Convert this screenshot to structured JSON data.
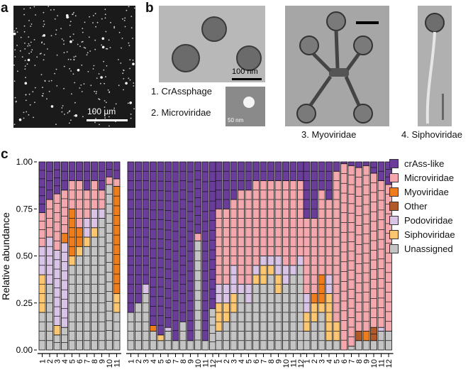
{
  "panels": {
    "a": {
      "letter": "a",
      "scale_label": "100 µm"
    },
    "b": {
      "letter": "b",
      "scale_label_main": "100 nm",
      "scale_label_small": "50 nm",
      "captions": [
        "1. CrAssphage",
        "2. Microviridae",
        "3. Myoviridae",
        "4. Siphoviridae"
      ]
    },
    "c": {
      "letter": "c"
    }
  },
  "colors": {
    "crass": "#6a3d9a",
    "micro": "#f4a8ad",
    "myo": "#f07d1b",
    "other": "#b15928",
    "podo": "#d9c3e6",
    "sipho": "#fdc772",
    "unassigned": "#c4c4c4"
  },
  "chart_data": {
    "type": "bar",
    "stacked": true,
    "ylabel": "Relative abundance",
    "yticks": [
      "0.00",
      "0.25",
      "0.50",
      "0.75",
      "1.00"
    ],
    "ylim": [
      0,
      1
    ],
    "legend": [
      "crAss-like",
      "Microviridae",
      "Myoviridae",
      "Other",
      "Podoviridae",
      "Siphoviridae",
      "Unassigned"
    ],
    "legend_keys": [
      "crass",
      "micro",
      "myo",
      "other",
      "podo",
      "sipho",
      "unassigned"
    ],
    "legend_position": "right",
    "groups": [
      {
        "categories": [
          "1",
          "2",
          "3",
          "4",
          "5",
          "6",
          "7",
          "8",
          "9",
          "10",
          "11"
        ],
        "stacks": [
          {
            "unassigned": 0.2,
            "sipho": 0.2,
            "podo": 0.15,
            "micro": 0.18,
            "crass": 0.27
          },
          {
            "unassigned": 0.35,
            "podo": 0.25,
            "micro": 0.2,
            "crass": 0.2
          },
          {
            "unassigned": 0.08,
            "sipho": 0.05,
            "podo": 0.4,
            "micro": 0.3,
            "crass": 0.17
          },
          {
            "unassigned": 0.12,
            "myo": 0.05,
            "podo": 0.45,
            "micro": 0.23,
            "crass": 0.15
          },
          {
            "unassigned": 0.45,
            "sipho": 0.05,
            "myo": 0.25,
            "micro": 0.15,
            "crass": 0.1
          },
          {
            "unassigned": 0.5,
            "sipho": 0.05,
            "myo": 0.1,
            "micro": 0.25,
            "crass": 0.1
          },
          {
            "unassigned": 0.55,
            "sipho": 0.05,
            "podo": 0.1,
            "micro": 0.15,
            "crass": 0.15
          },
          {
            "unassigned": 0.6,
            "sipho": 0.05,
            "podo": 0.1,
            "micro": 0.15,
            "crass": 0.1
          },
          {
            "unassigned": 0.7,
            "podo": 0.05,
            "micro": 0.1,
            "crass": 0.15
          },
          {
            "unassigned": 0.88,
            "micro": 0.04,
            "crass": 0.08
          },
          {
            "unassigned": 0.2,
            "sipho": 0.1,
            "myo": 0.57,
            "micro": 0.04,
            "crass": 0.09
          }
        ]
      },
      {
        "categories": [
          "1",
          "2",
          "3",
          "4",
          "5",
          "6",
          "7",
          "8",
          "9",
          "10",
          "11",
          "12"
        ],
        "stacks": [
          {
            "unassigned": 0.2,
            "crass": 0.8
          },
          {
            "unassigned": 0.25,
            "crass": 0.75
          },
          {
            "unassigned": 0.3,
            "podo": 0.05,
            "crass": 0.65
          },
          {
            "unassigned": 0.1,
            "myo": 0.03,
            "crass": 0.87
          },
          {
            "unassigned": 0.05,
            "sipho": 0.03,
            "crass": 0.92
          },
          {
            "unassigned": 0.1,
            "podo": 0.02,
            "crass": 0.88
          },
          {
            "unassigned": 0.05,
            "crass": 0.95
          },
          {
            "unassigned": 0.15,
            "crass": 0.85
          },
          {
            "unassigned": 0.05,
            "crass": 0.95
          },
          {
            "unassigned": 0.58,
            "micro": 0.04,
            "crass": 0.38
          },
          {
            "unassigned": 0.05,
            "crass": 0.95
          },
          {
            "unassigned": 0.22,
            "crass": 0.78
          }
        ]
      },
      {
        "categories": [
          "1",
          "2",
          "3",
          "4",
          "5",
          "6",
          "7",
          "8",
          "9",
          "10",
          "11",
          "12"
        ],
        "stacks": [
          {
            "unassigned": 0.1,
            "sipho": 0.15,
            "podo": 0.1,
            "micro": 0.4,
            "crass": 0.25
          },
          {
            "unassigned": 0.15,
            "sipho": 0.1,
            "podo": 0.1,
            "micro": 0.4,
            "crass": 0.25
          },
          {
            "unassigned": 0.2,
            "sipho": 0.1,
            "podo": 0.15,
            "micro": 0.35,
            "crass": 0.2
          },
          {
            "unassigned": 0.3,
            "podo": 0.05,
            "micro": 0.5,
            "crass": 0.15
          },
          {
            "unassigned": 0.25,
            "podo": 0.1,
            "micro": 0.5,
            "crass": 0.15
          },
          {
            "unassigned": 0.35,
            "sipho": 0.05,
            "podo": 0.05,
            "micro": 0.45,
            "crass": 0.1
          },
          {
            "unassigned": 0.35,
            "sipho": 0.1,
            "podo": 0.05,
            "micro": 0.4,
            "crass": 0.1
          },
          {
            "unassigned": 0.4,
            "sipho": 0.05,
            "podo": 0.05,
            "micro": 0.4,
            "crass": 0.1
          },
          {
            "unassigned": 0.3,
            "sipho": 0.1,
            "podo": 0.1,
            "micro": 0.4,
            "crass": 0.1
          },
          {
            "unassigned": 0.35,
            "podo": 0.1,
            "micro": 0.45,
            "crass": 0.1
          },
          {
            "unassigned": 0.4,
            "podo": 0.05,
            "micro": 0.45,
            "crass": 0.1
          },
          {
            "unassigned": 0.45,
            "podo": 0.05,
            "micro": 0.4,
            "crass": 0.1
          }
        ]
      },
      {
        "categories": [
          "1",
          "2",
          "3",
          "4",
          "5",
          "6",
          "7",
          "8",
          "9",
          "10",
          "11",
          "12"
        ],
        "stacks": [
          {
            "unassigned": 0.1,
            "sipho": 0.1,
            "podo": 0.1,
            "micro": 0.4,
            "crass": 0.3
          },
          {
            "unassigned": 0.15,
            "sipho": 0.1,
            "myo": 0.05,
            "micro": 0.4,
            "crass": 0.3
          },
          {
            "unassigned": 0.2,
            "sipho": 0.05,
            "myo": 0.15,
            "micro": 0.45,
            "crass": 0.15
          },
          {
            "unassigned": 0.05,
            "sipho": 0.25,
            "podo": 0.1,
            "micro": 0.4,
            "crass": 0.2
          },
          {
            "unassigned": 0.05,
            "sipho": 0.1,
            "micro": 0.8,
            "crass": 0.05
          },
          {
            "micro": 0.99,
            "crass": 0.01
          },
          {
            "unassigned": 0.02,
            "micro": 0.96,
            "crass": 0.02
          },
          {
            "unassigned": 0.05,
            "other": 0.05,
            "micro": 0.87,
            "crass": 0.03
          },
          {
            "unassigned": 0.05,
            "myo": 0.05,
            "micro": 0.88,
            "crass": 0.02
          },
          {
            "unassigned": 0.05,
            "other": 0.07,
            "micro": 0.82,
            "crass": 0.06
          },
          {
            "unassigned": 0.1,
            "podo": 0.02,
            "micro": 0.78,
            "crass": 0.1
          },
          {
            "unassigned": 0.1,
            "micro": 0.78,
            "crass": 0.12
          }
        ]
      }
    ]
  }
}
